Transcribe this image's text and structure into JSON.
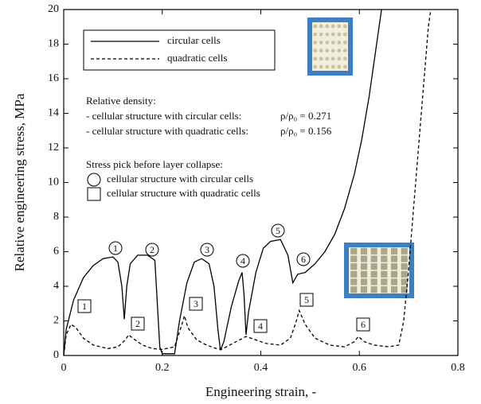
{
  "chart_data": {
    "type": "line",
    "xlabel": "Engineering strain, -",
    "ylabel": "Relative engineering stress, MPa",
    "xlim": [
      0,
      0.8
    ],
    "ylim": [
      0,
      20
    ],
    "xticks": [
      0,
      0.2,
      0.4,
      0.6,
      0.8
    ],
    "yticks": [
      0,
      2,
      4,
      6,
      8,
      10,
      12,
      14,
      16,
      18,
      20
    ],
    "series": [
      {
        "name": "circular cells",
        "color": "#000000",
        "dash": "solid",
        "x": [
          0,
          0.005,
          0.02,
          0.04,
          0.06,
          0.08,
          0.1,
          0.11,
          0.118,
          0.123,
          0.128,
          0.135,
          0.15,
          0.17,
          0.185,
          0.19,
          0.195,
          0.2,
          0.225,
          0.235,
          0.25,
          0.265,
          0.28,
          0.295,
          0.305,
          0.313,
          0.318,
          0.325,
          0.34,
          0.355,
          0.362,
          0.366,
          0.37,
          0.375,
          0.39,
          0.405,
          0.42,
          0.44,
          0.455,
          0.465,
          0.475,
          0.49,
          0.51,
          0.53,
          0.55,
          0.57,
          0.59,
          0.605,
          0.62,
          0.635,
          0.645
        ],
        "values": [
          0,
          1.5,
          3.2,
          4.5,
          5.2,
          5.6,
          5.7,
          5.4,
          4.0,
          2.1,
          4.0,
          5.3,
          5.8,
          5.8,
          5.5,
          3.0,
          0.5,
          0.1,
          0.1,
          2.0,
          4.2,
          5.4,
          5.6,
          5.3,
          4.0,
          1.5,
          0.3,
          0.8,
          2.8,
          4.3,
          4.8,
          3.5,
          1.2,
          2.5,
          4.8,
          6.2,
          6.6,
          6.7,
          5.8,
          4.2,
          4.7,
          4.8,
          5.3,
          6.0,
          7.0,
          8.5,
          10.5,
          12.5,
          15.0,
          18.0,
          20
        ]
      },
      {
        "name": "quadratic cells",
        "color": "#000000",
        "dash": "dashed",
        "x": [
          0,
          0.005,
          0.015,
          0.025,
          0.04,
          0.06,
          0.09,
          0.11,
          0.125,
          0.132,
          0.14,
          0.16,
          0.18,
          0.2,
          0.225,
          0.24,
          0.245,
          0.252,
          0.27,
          0.29,
          0.31,
          0.32,
          0.33,
          0.35,
          0.37,
          0.39,
          0.41,
          0.44,
          0.46,
          0.47,
          0.478,
          0.49,
          0.51,
          0.54,
          0.57,
          0.59,
          0.598,
          0.61,
          0.63,
          0.66,
          0.68,
          0.69,
          0.7,
          0.71,
          0.72,
          0.73,
          0.74,
          0.745
        ],
        "values": [
          0,
          1.2,
          1.8,
          1.6,
          1.0,
          0.6,
          0.4,
          0.5,
          0.9,
          1.2,
          1.0,
          0.6,
          0.4,
          0.35,
          0.5,
          1.8,
          2.3,
          1.6,
          0.9,
          0.6,
          0.4,
          0.35,
          0.5,
          0.8,
          1.1,
          0.9,
          0.7,
          0.6,
          1.0,
          1.8,
          2.6,
          1.8,
          1.0,
          0.6,
          0.5,
          0.8,
          1.1,
          0.8,
          0.6,
          0.5,
          0.6,
          2.0,
          5.0,
          8.5,
          12.0,
          15.5,
          19.0,
          20
        ]
      }
    ],
    "annotations": {
      "density_title": "Relative density:",
      "density_circular": "- cellular structure with circular cells:",
      "density_circular_value": "ρ/ρ₀ = 0.271",
      "density_quadratic": "- cellular structure with quadratic cells:",
      "density_quadratic_value": "ρ/ρ₀ = 0.156",
      "pick_title": "Stress pick before layer collapse:",
      "pick_circular": "cellular structure with circular cells",
      "pick_quadratic": "cellular structure with quadratic cells"
    },
    "circle_markers": [
      "1",
      "2",
      "3",
      "4",
      "5",
      "6"
    ],
    "square_markers": [
      "1",
      "2",
      "3",
      "4",
      "5",
      "6"
    ]
  }
}
